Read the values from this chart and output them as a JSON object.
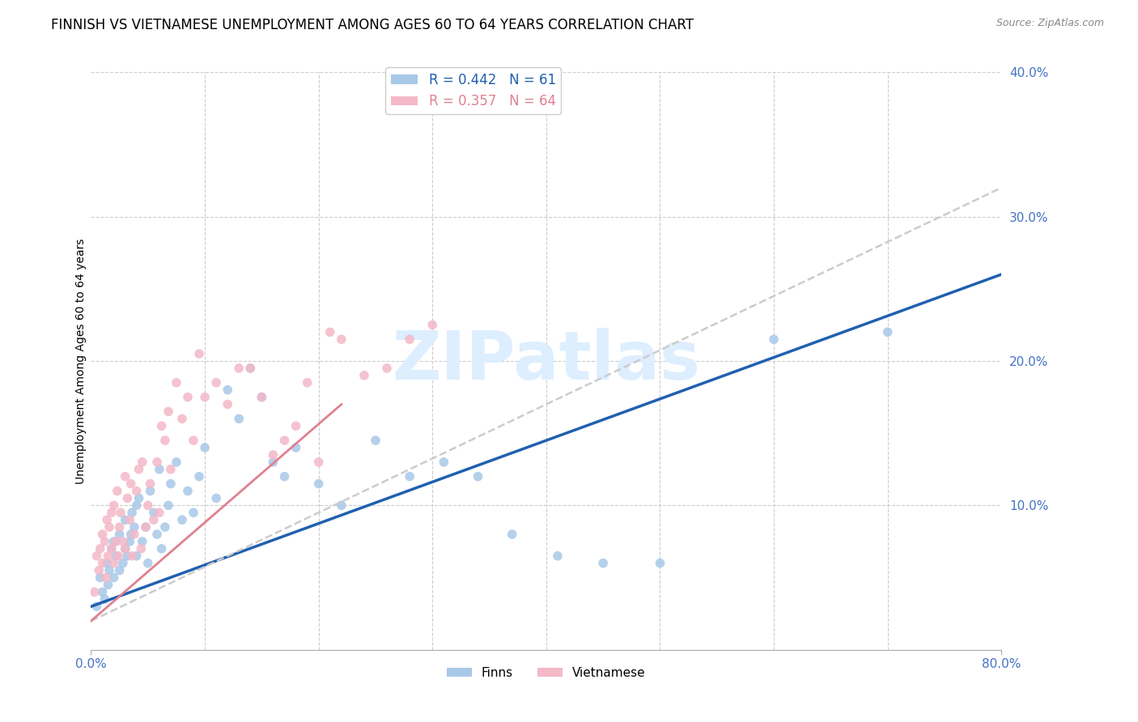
{
  "title": "FINNISH VS VIETNAMESE UNEMPLOYMENT AMONG AGES 60 TO 64 YEARS CORRELATION CHART",
  "source": "Source: ZipAtlas.com",
  "ylabel": "Unemployment Among Ages 60 to 64 years",
  "xlim": [
    0,
    0.8
  ],
  "ylim": [
    0,
    0.4
  ],
  "finns_R": 0.442,
  "finns_N": 61,
  "vietnamese_R": 0.357,
  "vietnamese_N": 64,
  "finns_color": "#a8c8e8",
  "vietnamese_color": "#f4b8c8",
  "finns_line_color": "#2060b0",
  "vietnamese_line_color": "#c0c0c0",
  "vietnamese_line_color2": "#e08090",
  "watermark_color": "#ddeeff",
  "grid_color": "#cccccc",
  "background_color": "#ffffff",
  "title_fontsize": 12,
  "axis_label_fontsize": 10,
  "tick_fontsize": 11,
  "tick_color": "#4472c4",
  "finns_scatter_x": [
    0.005,
    0.008,
    0.01,
    0.012,
    0.014,
    0.015,
    0.016,
    0.018,
    0.02,
    0.02,
    0.022,
    0.025,
    0.025,
    0.028,
    0.03,
    0.03,
    0.032,
    0.034,
    0.035,
    0.036,
    0.038,
    0.04,
    0.04,
    0.042,
    0.045,
    0.048,
    0.05,
    0.052,
    0.055,
    0.058,
    0.06,
    0.062,
    0.065,
    0.068,
    0.07,
    0.075,
    0.08,
    0.085,
    0.09,
    0.095,
    0.1,
    0.11,
    0.12,
    0.13,
    0.14,
    0.15,
    0.16,
    0.17,
    0.18,
    0.2,
    0.22,
    0.25,
    0.28,
    0.31,
    0.34,
    0.37,
    0.41,
    0.45,
    0.5,
    0.6,
    0.7
  ],
  "finns_scatter_y": [
    0.03,
    0.05,
    0.04,
    0.035,
    0.06,
    0.045,
    0.055,
    0.07,
    0.05,
    0.075,
    0.065,
    0.055,
    0.08,
    0.06,
    0.07,
    0.09,
    0.065,
    0.075,
    0.08,
    0.095,
    0.085,
    0.1,
    0.065,
    0.105,
    0.075,
    0.085,
    0.06,
    0.11,
    0.095,
    0.08,
    0.125,
    0.07,
    0.085,
    0.1,
    0.115,
    0.13,
    0.09,
    0.11,
    0.095,
    0.12,
    0.14,
    0.105,
    0.18,
    0.16,
    0.195,
    0.175,
    0.13,
    0.12,
    0.14,
    0.115,
    0.1,
    0.145,
    0.12,
    0.13,
    0.12,
    0.08,
    0.065,
    0.06,
    0.06,
    0.215,
    0.22
  ],
  "vietnamese_scatter_x": [
    0.003,
    0.005,
    0.007,
    0.008,
    0.01,
    0.01,
    0.012,
    0.013,
    0.014,
    0.015,
    0.016,
    0.018,
    0.018,
    0.02,
    0.02,
    0.022,
    0.023,
    0.024,
    0.025,
    0.026,
    0.028,
    0.03,
    0.03,
    0.032,
    0.034,
    0.035,
    0.036,
    0.038,
    0.04,
    0.042,
    0.044,
    0.045,
    0.048,
    0.05,
    0.052,
    0.055,
    0.058,
    0.06,
    0.062,
    0.065,
    0.068,
    0.07,
    0.075,
    0.08,
    0.085,
    0.09,
    0.095,
    0.1,
    0.11,
    0.12,
    0.13,
    0.14,
    0.15,
    0.16,
    0.17,
    0.18,
    0.19,
    0.2,
    0.21,
    0.22,
    0.24,
    0.26,
    0.28,
    0.3
  ],
  "vietnamese_scatter_y": [
    0.04,
    0.065,
    0.055,
    0.07,
    0.06,
    0.08,
    0.075,
    0.05,
    0.09,
    0.065,
    0.085,
    0.095,
    0.07,
    0.06,
    0.1,
    0.075,
    0.11,
    0.065,
    0.085,
    0.095,
    0.075,
    0.12,
    0.07,
    0.105,
    0.09,
    0.115,
    0.065,
    0.08,
    0.11,
    0.125,
    0.07,
    0.13,
    0.085,
    0.1,
    0.115,
    0.09,
    0.13,
    0.095,
    0.155,
    0.145,
    0.165,
    0.125,
    0.185,
    0.16,
    0.175,
    0.145,
    0.205,
    0.175,
    0.185,
    0.17,
    0.195,
    0.195,
    0.175,
    0.135,
    0.145,
    0.155,
    0.185,
    0.13,
    0.22,
    0.215,
    0.19,
    0.195,
    0.215,
    0.225
  ]
}
